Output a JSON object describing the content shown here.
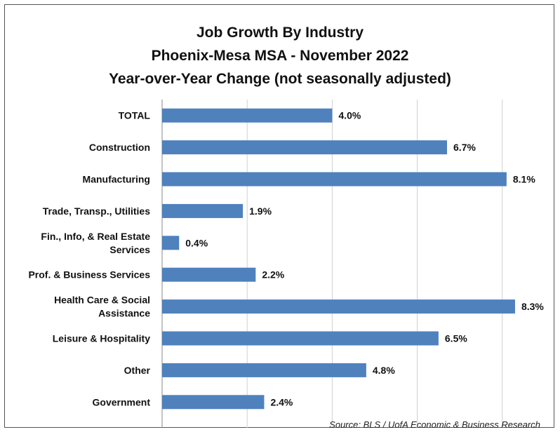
{
  "chart_data": {
    "type": "bar",
    "orientation": "horizontal",
    "title_lines": [
      "Job Growth By Industry",
      "Phoenix-Mesa MSA - November 2022",
      "Year-over-Year Change (not seasonally adjusted)"
    ],
    "categories": [
      [
        "TOTAL"
      ],
      [
        "Construction"
      ],
      [
        "Manufacturing"
      ],
      [
        "Trade, Transp., Utilities"
      ],
      [
        "Fin., Info, & Real Estate",
        "Services"
      ],
      [
        "Prof. & Business Services"
      ],
      [
        "Health Care & Social",
        "Assistance"
      ],
      [
        "Leisure & Hospitality"
      ],
      [
        "Other"
      ],
      [
        "Government"
      ]
    ],
    "values": [
      4.0,
      6.7,
      8.1,
      1.9,
      0.4,
      2.2,
      8.3,
      6.5,
      4.8,
      2.4
    ],
    "value_labels": [
      "4.0%",
      "6.7%",
      "8.1%",
      "1.9%",
      "0.4%",
      "2.2%",
      "8.3%",
      "6.5%",
      "4.8%",
      "2.4%"
    ],
    "xlim": [
      0,
      10
    ],
    "grid": true,
    "bar_color": "#4F81BD",
    "source": "Source: BLS / UofA Economic & Business Research"
  }
}
